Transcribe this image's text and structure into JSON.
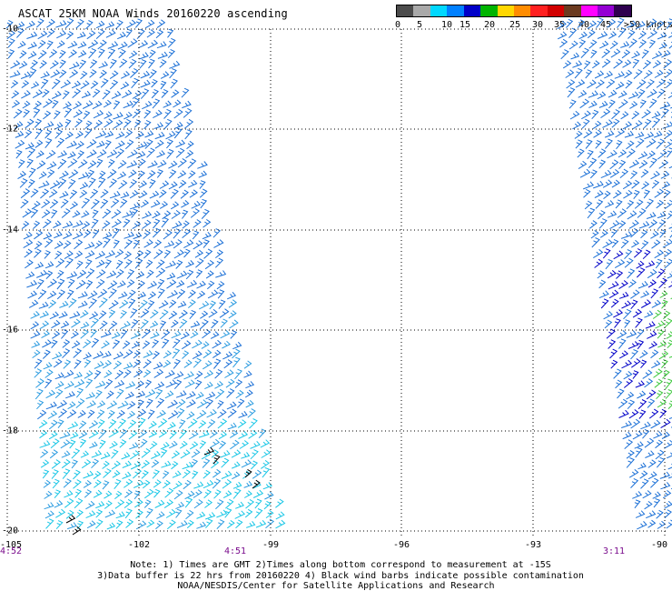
{
  "title": "ASCAT 25KM NOAA Winds 20160220 ascending",
  "legend": {
    "labels": [
      "0",
      "5",
      "10",
      "15",
      "20",
      "25",
      "30",
      "35",
      "40",
      "45",
      ">50 knots"
    ],
    "colors": [
      "#4c4c4c",
      "#a9a9a9",
      "#00d8ff",
      "#0080ff",
      "#0000c8",
      "#00b400",
      "#ffd700",
      "#ff8c00",
      "#ff2020",
      "#d20000",
      "#6b3a1f",
      "#ff00ff",
      "#9400d3",
      "#2e004f"
    ]
  },
  "map": {
    "lon_labels": [
      "-105",
      "-102",
      "-99",
      "-96",
      "-93",
      "-90"
    ],
    "lat_labels": [
      "-10",
      "-12",
      "-14",
      "-16",
      "-18",
      "-20"
    ],
    "time_labels": [
      "4:52",
      "4:51",
      "3:11"
    ]
  },
  "notes": {
    "line1": "Note: 1) Times are GMT 2)Times along bottom correspond to measurement at -15S",
    "line2": "3)Data buffer is 22 hrs from 20160220 4) Black wind barbs indicate possible contamination",
    "line3": "NOAA/NESDIS/Center for Satellite Applications and Research"
  }
}
